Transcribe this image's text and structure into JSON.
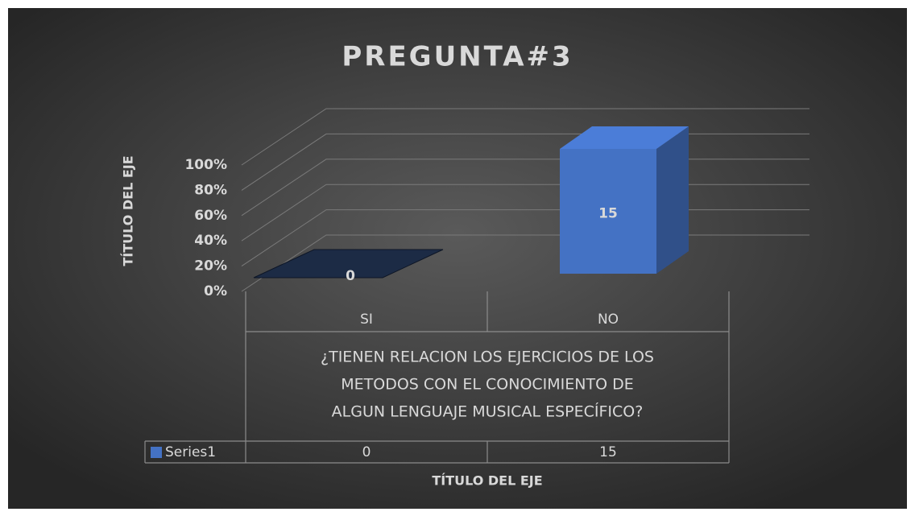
{
  "chart_data": {
    "type": "bar",
    "stacking": "percent",
    "title": "PREGUNTA#3",
    "y_axis_label": "TÍTULO DEL EJE",
    "x_axis_label": "TÍTULO DEL EJE",
    "categories": [
      "SI",
      "NO"
    ],
    "category_group_label": [
      "¿TIENEN RELACION LOS EJERCICIOS DE LOS",
      "METODOS CON EL CONOCIMIENTO DE",
      "ALGUN LENGUAJE MUSICAL ESPECÍFICO?"
    ],
    "series": [
      {
        "name": "Series1",
        "color": "#4472c4",
        "values": [
          0,
          15
        ]
      }
    ],
    "ylim": [
      0,
      100
    ],
    "yticks": [
      {
        "value": 0,
        "label": "0%"
      },
      {
        "value": 20,
        "label": "20%"
      },
      {
        "value": 40,
        "label": "40%"
      },
      {
        "value": 60,
        "label": "60%"
      },
      {
        "value": 80,
        "label": "80%"
      },
      {
        "value": 100,
        "label": "100%"
      }
    ],
    "grid": true,
    "data_labels": true,
    "data_table": true
  }
}
